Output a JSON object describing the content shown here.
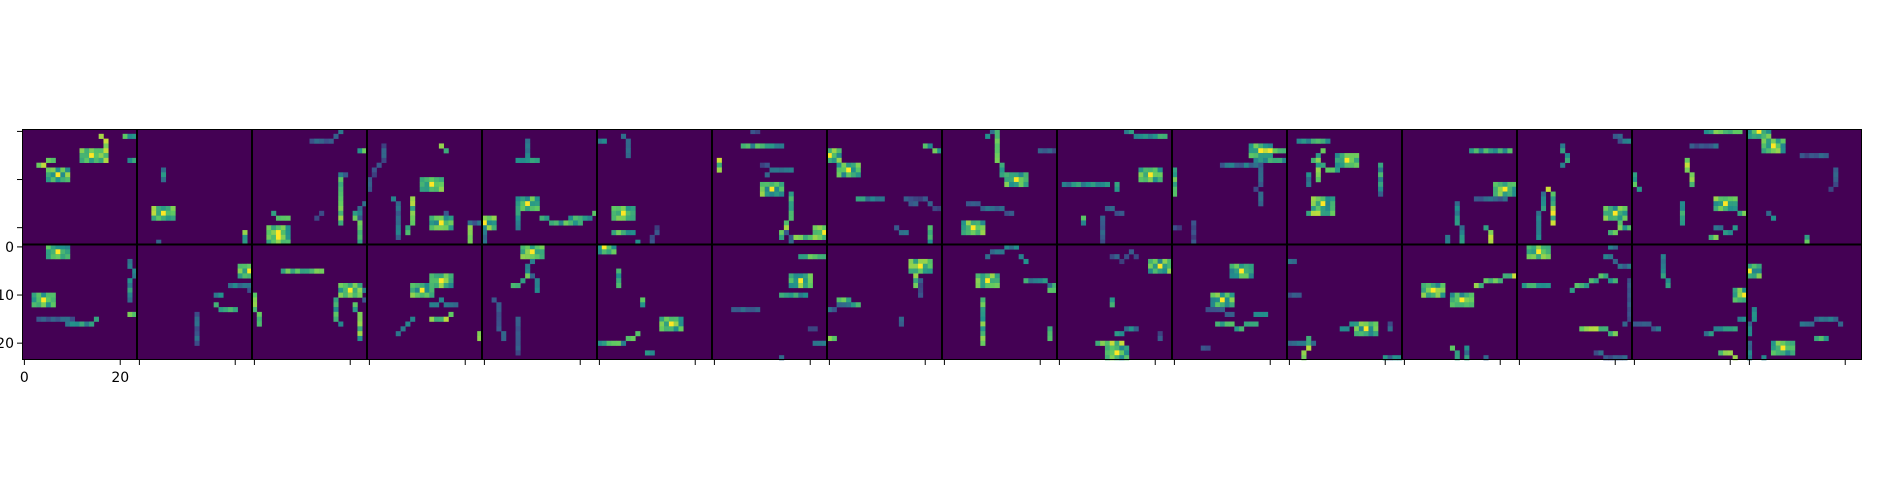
{
  "chart_data": {
    "type": "heatmap",
    "layout": {
      "rows": 2,
      "cols": 16
    },
    "panel_size": 24,
    "colormap": "viridis",
    "background_color": "#440154",
    "grid": false,
    "tick_labels": {
      "left_panel_y": [
        "0",
        "10",
        "20"
      ],
      "left_panel_x": [
        "0",
        "20"
      ]
    },
    "y_ticks": [
      0,
      10,
      20
    ],
    "x_ticks": [
      0,
      20
    ],
    "seed": 7
  }
}
